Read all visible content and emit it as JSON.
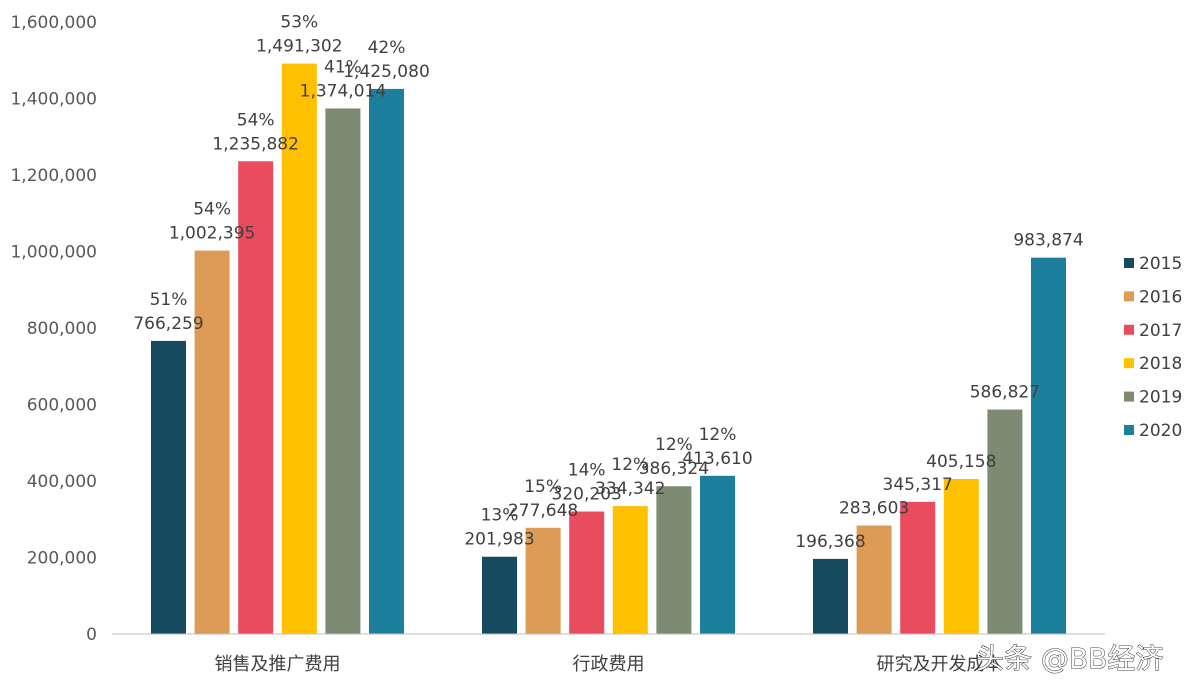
{
  "chart_data": {
    "type": "bar",
    "categories": [
      "销售及推广费用",
      "行政费用",
      "研究及开发成本"
    ],
    "series": [
      {
        "name": "2015",
        "color": "#164a5e",
        "values": [
          766259,
          201983,
          196368
        ],
        "pct": [
          "51%",
          "13%",
          ""
        ]
      },
      {
        "name": "2016",
        "color": "#dd9c55",
        "values": [
          1002395,
          277648,
          283603
        ],
        "pct": [
          "54%",
          "15%",
          ""
        ]
      },
      {
        "name": "2017",
        "color": "#e84c5e",
        "values": [
          1235882,
          320203,
          345317
        ],
        "pct": [
          "54%",
          "14%",
          ""
        ]
      },
      {
        "name": "2018",
        "color": "#ffc000",
        "values": [
          1491302,
          334342,
          405158
        ],
        "pct": [
          "53%",
          "12%",
          ""
        ]
      },
      {
        "name": "2019",
        "color": "#7d8b72",
        "values": [
          1374014,
          386324,
          586827
        ],
        "pct": [
          "41%",
          "12%",
          ""
        ]
      },
      {
        "name": "2020",
        "color": "#1c7f9e",
        "values": [
          1425080,
          413610,
          983874
        ],
        "pct": [
          "42%",
          "12%",
          ""
        ]
      }
    ],
    "ylim": [
      0,
      1600000
    ],
    "yticks": [
      0,
      200000,
      400000,
      600000,
      800000,
      1000000,
      1200000,
      1400000,
      1600000
    ],
    "ytick_labels": [
      "0",
      "200,000",
      "400,000",
      "600,000",
      "800,000",
      "1,000,000",
      "1,200,000",
      "1,400,000",
      "1,600,000"
    ],
    "grid": false,
    "legend_position": "right",
    "title": "",
    "xlabel": "",
    "ylabel": ""
  },
  "watermark": "头条 @BB经济"
}
